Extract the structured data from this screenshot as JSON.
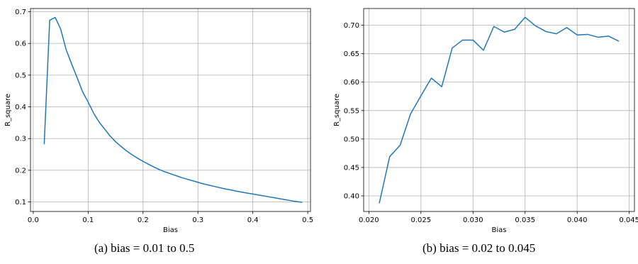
{
  "chart_data": [
    {
      "type": "line",
      "caption": "(a) bias = 0.01 to 0.5",
      "xlabel": "Bias",
      "ylabel": "R_square",
      "xlim": [
        -0.005,
        0.505
      ],
      "ylim": [
        0.07,
        0.71
      ],
      "xticks": [
        0.0,
        0.1,
        0.2,
        0.3,
        0.4,
        0.5
      ],
      "xtick_labels": [
        "0.0",
        "0.1",
        "0.2",
        "0.3",
        "0.4",
        "0.5"
      ],
      "yticks": [
        0.1,
        0.2,
        0.3,
        0.4,
        0.5,
        0.6,
        0.7
      ],
      "ytick_labels": [
        "0.1",
        "0.2",
        "0.3",
        "0.4",
        "0.5",
        "0.6",
        "0.7"
      ],
      "grid": true,
      "color": "#1f77b4",
      "x": [
        0.02,
        0.03,
        0.04,
        0.05,
        0.06,
        0.07,
        0.08,
        0.09,
        0.1,
        0.11,
        0.12,
        0.13,
        0.14,
        0.15,
        0.16,
        0.17,
        0.18,
        0.19,
        0.2,
        0.21,
        0.22,
        0.23,
        0.24,
        0.25,
        0.26,
        0.27,
        0.28,
        0.29,
        0.3,
        0.31,
        0.32,
        0.33,
        0.34,
        0.35,
        0.36,
        0.37,
        0.38,
        0.39,
        0.4,
        0.41,
        0.42,
        0.43,
        0.44,
        0.45,
        0.46,
        0.47,
        0.48,
        0.49
      ],
      "y": [
        0.282,
        0.673,
        0.682,
        0.645,
        0.58,
        0.535,
        0.492,
        0.447,
        0.415,
        0.38,
        0.352,
        0.33,
        0.308,
        0.29,
        0.275,
        0.261,
        0.249,
        0.238,
        0.228,
        0.219,
        0.21,
        0.202,
        0.195,
        0.189,
        0.183,
        0.177,
        0.172,
        0.167,
        0.162,
        0.157,
        0.153,
        0.149,
        0.145,
        0.141,
        0.138,
        0.134,
        0.131,
        0.128,
        0.125,
        0.122,
        0.119,
        0.116,
        0.113,
        0.11,
        0.107,
        0.104,
        0.101,
        0.099
      ]
    },
    {
      "type": "line",
      "caption": "(b) bias = 0.02 to 0.045",
      "xlabel": "Bias",
      "ylabel": "R_square",
      "xlim": [
        0.0195,
        0.0455
      ],
      "ylim": [
        0.3725,
        0.7295
      ],
      "xticks": [
        0.02,
        0.025,
        0.03,
        0.035,
        0.04,
        0.045
      ],
      "xtick_labels": [
        "0.020",
        "0.025",
        "0.030",
        "0.035",
        "0.040",
        "0.045"
      ],
      "yticks": [
        0.4,
        0.45,
        0.5,
        0.55,
        0.6,
        0.65,
        0.7
      ],
      "ytick_labels": [
        "0.40",
        "0.45",
        "0.50",
        "0.55",
        "0.60",
        "0.65",
        "0.70"
      ],
      "grid": true,
      "color": "#1f77b4",
      "x": [
        0.021,
        0.022,
        0.023,
        0.024,
        0.025,
        0.026,
        0.027,
        0.028,
        0.029,
        0.03,
        0.031,
        0.032,
        0.033,
        0.034,
        0.035,
        0.036,
        0.037,
        0.038,
        0.039,
        0.04,
        0.041,
        0.042,
        0.043,
        0.044
      ],
      "y": [
        0.387,
        0.469,
        0.489,
        0.544,
        0.576,
        0.607,
        0.592,
        0.66,
        0.674,
        0.674,
        0.656,
        0.698,
        0.688,
        0.693,
        0.714,
        0.699,
        0.689,
        0.685,
        0.696,
        0.683,
        0.684,
        0.679,
        0.681,
        0.672
      ]
    }
  ]
}
